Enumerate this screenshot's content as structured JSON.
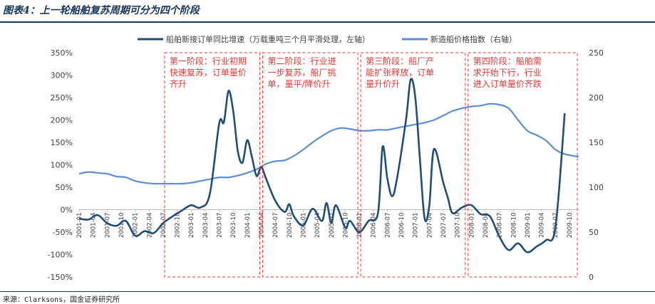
{
  "figure_title": "图表4：上一轮船舶复苏周期可分为四个阶段",
  "source": "来源：Clarksons，国金证券研究所",
  "colors": {
    "left_series": "#1f4e79",
    "right_series": "#5b8ed6",
    "phase_box": "#e53935",
    "rule": "#16365c"
  },
  "chart_data": {
    "type": "line",
    "title": "",
    "legend_position": "top",
    "x_ticks": [
      "2001-01",
      "2001-07",
      "2002-01",
      "2002-07",
      "2003-01",
      "2003-07",
      "2004-01",
      "2004-07",
      "2005-01",
      "2005-07",
      "2006-01",
      "2006-07",
      "2007-01",
      "2007-07",
      "2008-01",
      "2008-07",
      "2009-01",
      "2009-07",
      "2009-12"
    ],
    "x_tick_labels": [
      "2001-01",
      "2001-04",
      "2001-07",
      "2001-10",
      "2002-01",
      "2002-04",
      "2002-07",
      "2002-10",
      "2003-01",
      "2003-04",
      "2003-07",
      "2003-10",
      "2004-01",
      "2004-04",
      "2004-07",
      "2004-10",
      "2005-01",
      "2005-04",
      "2005-07",
      "2005-10",
      "2006-01",
      "2006-04",
      "2006-07",
      "2006-10",
      "2007-01",
      "2007-04",
      "2007-07",
      "2007-10",
      "2008-01",
      "2008-04",
      "2008-07",
      "2008-10",
      "2009-01",
      "2009-04",
      "2009-07",
      "2009-10"
    ],
    "y_left": {
      "min": -150,
      "max": 350,
      "step": 50,
      "ticks": [
        "-150%",
        "-100%",
        "-50%",
        "0%",
        "50%",
        "100%",
        "150%",
        "200%",
        "250%",
        "300%",
        "350%"
      ]
    },
    "y_right": {
      "min": 0,
      "max": 250,
      "step": 50,
      "ticks": [
        "0",
        "50",
        "100",
        "150",
        "200",
        "250"
      ]
    },
    "series": [
      {
        "name": "船舶新接订单同比增速（万载重吨三个月平滑处理，左轴）",
        "axis": "left",
        "points": [
          [
            "2001-01",
            -20
          ],
          [
            "2001-03",
            -22
          ],
          [
            "2001-05",
            -12
          ],
          [
            "2001-07",
            -30
          ],
          [
            "2001-09",
            -36
          ],
          [
            "2001-11",
            -25
          ],
          [
            "2002-01",
            -58
          ],
          [
            "2002-03",
            -48
          ],
          [
            "2002-05",
            -52
          ],
          [
            "2002-07",
            -30
          ],
          [
            "2002-09",
            -15
          ],
          [
            "2002-11",
            -2
          ],
          [
            "2003-01",
            10
          ],
          [
            "2003-03",
            5
          ],
          [
            "2003-05",
            35
          ],
          [
            "2003-07",
            192
          ],
          [
            "2003-08",
            195
          ],
          [
            "2003-09",
            265
          ],
          [
            "2003-10",
            220
          ],
          [
            "2003-11",
            130
          ],
          [
            "2003-12",
            105
          ],
          [
            "2004-01",
            155
          ],
          [
            "2004-02",
            118
          ],
          [
            "2004-03",
            75
          ],
          [
            "2004-04",
            95
          ],
          [
            "2004-05",
            70
          ],
          [
            "2004-07",
            20
          ],
          [
            "2004-09",
            -5
          ],
          [
            "2004-10",
            12
          ],
          [
            "2004-11",
            -15
          ],
          [
            "2005-01",
            -35
          ],
          [
            "2005-03",
            2
          ],
          [
            "2005-05",
            -25
          ],
          [
            "2005-06",
            15
          ],
          [
            "2005-07",
            -30
          ],
          [
            "2005-08",
            10
          ],
          [
            "2005-10",
            -40
          ],
          [
            "2005-11",
            -25
          ],
          [
            "2006-01",
            -50
          ],
          [
            "2006-03",
            -25
          ],
          [
            "2006-05",
            -8
          ],
          [
            "2006-06",
            140
          ],
          [
            "2006-07",
            70
          ],
          [
            "2006-08",
            30
          ],
          [
            "2006-09",
            65
          ],
          [
            "2006-11",
            200
          ],
          [
            "2006-12",
            290
          ],
          [
            "2007-01",
            250
          ],
          [
            "2007-02",
            110
          ],
          [
            "2007-03",
            -20
          ],
          [
            "2007-04",
            10
          ],
          [
            "2007-05",
            135
          ],
          [
            "2007-07",
            60
          ],
          [
            "2007-08",
            25
          ],
          [
            "2007-09",
            -8
          ],
          [
            "2007-11",
            5
          ],
          [
            "2008-01",
            10
          ],
          [
            "2008-03",
            -10
          ],
          [
            "2008-05",
            -15
          ],
          [
            "2008-07",
            -60
          ],
          [
            "2008-09",
            -90
          ],
          [
            "2008-11",
            -75
          ],
          [
            "2009-01",
            -95
          ],
          [
            "2009-03",
            -82
          ],
          [
            "2009-05",
            -68
          ],
          [
            "2009-07",
            -40
          ],
          [
            "2009-09",
            215
          ]
        ]
      },
      {
        "name": "新造船价格指数（右轴）",
        "axis": "right",
        "points": [
          [
            "2001-01",
            115
          ],
          [
            "2001-03",
            117
          ],
          [
            "2001-05",
            116
          ],
          [
            "2001-07",
            115
          ],
          [
            "2001-09",
            112
          ],
          [
            "2001-11",
            111
          ],
          [
            "2002-01",
            107
          ],
          [
            "2002-03",
            105
          ],
          [
            "2002-05",
            104
          ],
          [
            "2002-07",
            104
          ],
          [
            "2002-09",
            104
          ],
          [
            "2002-11",
            104
          ],
          [
            "2003-01",
            105
          ],
          [
            "2003-03",
            107
          ],
          [
            "2003-05",
            109
          ],
          [
            "2003-07",
            111
          ],
          [
            "2003-09",
            111
          ],
          [
            "2003-11",
            113
          ],
          [
            "2004-01",
            116
          ],
          [
            "2004-03",
            120
          ],
          [
            "2004-05",
            126
          ],
          [
            "2004-07",
            129
          ],
          [
            "2004-09",
            130
          ],
          [
            "2004-11",
            135
          ],
          [
            "2005-01",
            142
          ],
          [
            "2005-03",
            150
          ],
          [
            "2005-05",
            157
          ],
          [
            "2005-07",
            163
          ],
          [
            "2005-09",
            166
          ],
          [
            "2005-11",
            165
          ],
          [
            "2006-01",
            163
          ],
          [
            "2006-03",
            163
          ],
          [
            "2006-05",
            164
          ],
          [
            "2006-07",
            164
          ],
          [
            "2006-09",
            166
          ],
          [
            "2006-11",
            168
          ],
          [
            "2007-01",
            170
          ],
          [
            "2007-03",
            172
          ],
          [
            "2007-05",
            175
          ],
          [
            "2007-07",
            180
          ],
          [
            "2007-09",
            185
          ],
          [
            "2007-11",
            188
          ],
          [
            "2008-01",
            190
          ],
          [
            "2008-03",
            191
          ],
          [
            "2008-05",
            193
          ],
          [
            "2008-07",
            192
          ],
          [
            "2008-09",
            188
          ],
          [
            "2008-11",
            175
          ],
          [
            "2009-01",
            163
          ],
          [
            "2009-03",
            158
          ],
          [
            "2009-05",
            152
          ],
          [
            "2009-07",
            142
          ],
          [
            "2009-09",
            137
          ],
          [
            "2009-12",
            134
          ]
        ]
      }
    ],
    "annotations": [
      {
        "text": "第一阶段：行业初期快速复苏，订单量价齐升",
        "lines": [
          "第一阶段：行业初期",
          "快速复苏，订单量价",
          "齐升"
        ],
        "start": "2002-07",
        "end": "2004-04"
      },
      {
        "text": "第二阶段：行业进一步复苏，船厂挑单，量平/降价升",
        "lines": [
          "第二阶段：行业进",
          "一步复苏，船厂挑",
          "单，量平/降价升"
        ],
        "start": "2004-04",
        "end": "2006-01"
      },
      {
        "text": "第三阶段：船厂产能扩张释放，订单量升价升",
        "lines": [
          "第三阶段：船厂产",
          "能扩张释放，订单",
          "量升价升"
        ],
        "start": "2006-01",
        "end": "2007-12"
      },
      {
        "text": "第四阶段：船舶需求开始下行，行业进入订单量价齐跌",
        "lines": [
          "第四阶段：船舶需",
          "求开始下行，行业",
          "进入订单量价齐跌"
        ],
        "start": "2007-12",
        "end": "2009-12"
      }
    ]
  }
}
